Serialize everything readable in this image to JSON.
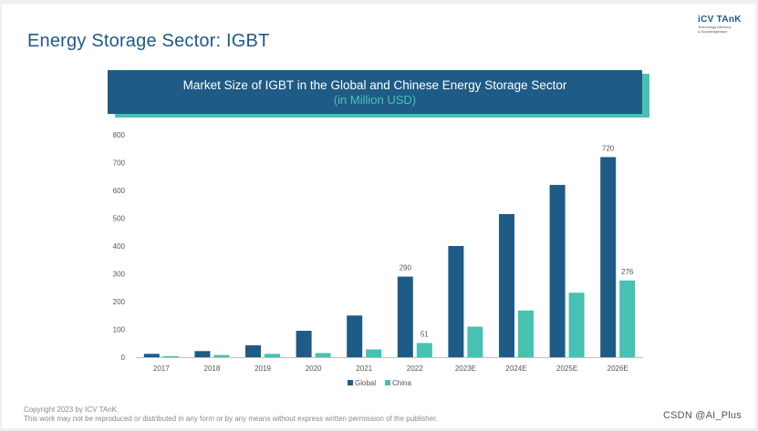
{
  "page": {
    "title": "Energy Storage Sector: IGBT",
    "logo_main": "iCV TAnK",
    "logo_sub1": "Technology Advisory",
    "logo_sub2": "& Knowledgebase",
    "footer_line1": "Copyright  2023 by ICV TAnK.",
    "footer_line2": "This work may not be reproduced or distributed in any form or by any means without express written permission of the publisher.",
    "watermark": "CSDN @AI_Plus"
  },
  "colors": {
    "global": "#1e5b86",
    "china": "#47c1b1",
    "accent_title": "#1f5a85"
  },
  "chart_data": {
    "type": "bar",
    "title": "Market Size of IGBT in the Global and Chinese Energy Storage Sector",
    "subtitle": "(in Million USD)",
    "categories": [
      "2017",
      "2018",
      "2019",
      "2020",
      "2021",
      "2022",
      "2023E",
      "2024E",
      "2025E",
      "2026E"
    ],
    "series": [
      {
        "name": "Global",
        "values": [
          12,
          22,
          43,
          95,
          150,
          290,
          400,
          515,
          620,
          720
        ]
      },
      {
        "name": "China",
        "values": [
          4,
          8,
          12,
          15,
          28,
          51,
          110,
          168,
          232,
          276
        ]
      }
    ],
    "data_labels": [
      {
        "series": 0,
        "index": 5,
        "text": "290"
      },
      {
        "series": 1,
        "index": 5,
        "text": "51"
      },
      {
        "series": 0,
        "index": 9,
        "text": "720"
      },
      {
        "series": 1,
        "index": 9,
        "text": "276"
      }
    ],
    "yticks": [
      0,
      100,
      200,
      300,
      400,
      500,
      600,
      700,
      800
    ],
    "ylim": [
      0,
      800
    ],
    "xlabel": "",
    "ylabel": "",
    "grid": false,
    "legend_position": "bottom-center"
  }
}
